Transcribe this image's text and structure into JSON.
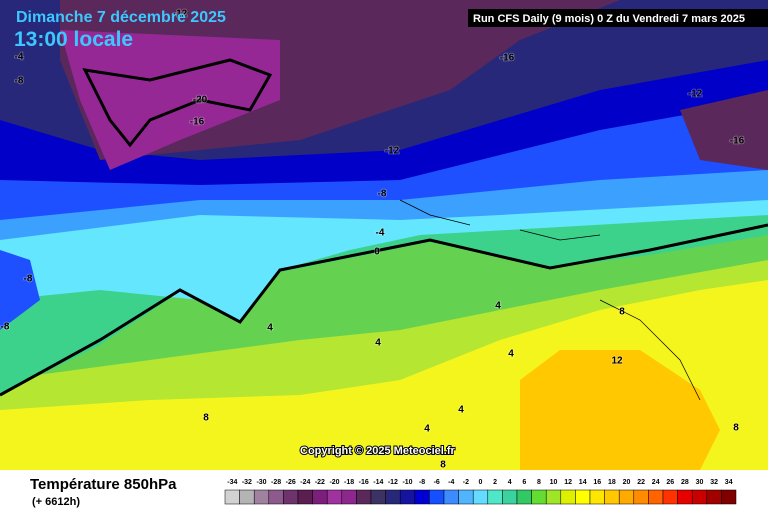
{
  "header": {
    "date": "Dimanche 7 décembre 2025",
    "time": "13:00 locale",
    "run": "Run CFS Daily (9 mois) 0 Z du Vendredi 7 mars 2025"
  },
  "copyright": "Copyright © 2025 Meteociel.fr",
  "footer": {
    "title": "Température 850hPa",
    "lead": "(+ 6612h)"
  },
  "contour_labels": [
    -12,
    -16,
    -20,
    -16,
    -12,
    -8,
    -4,
    0,
    -12,
    -16,
    -8,
    -8,
    4,
    4,
    4,
    4,
    8,
    12,
    8,
    4,
    4,
    8,
    8,
    -8,
    -4
  ],
  "legend": [
    {
      "value": -34,
      "color": "#d2d2d2"
    },
    {
      "value": -32,
      "color": "#b4b4b4"
    },
    {
      "value": -30,
      "color": "#a082a0"
    },
    {
      "value": -28,
      "color": "#8c5a8c"
    },
    {
      "value": -26,
      "color": "#6e326e"
    },
    {
      "value": -24,
      "color": "#5a1e50"
    },
    {
      "value": -22,
      "color": "#7d1e7d"
    },
    {
      "value": -20,
      "color": "#a032a0"
    },
    {
      "value": -18,
      "color": "#8c288c"
    },
    {
      "value": -16,
      "color": "#5a285a"
    },
    {
      "value": -14,
      "color": "#3c3264"
    },
    {
      "value": -12,
      "color": "#28287a"
    },
    {
      "value": -10,
      "color": "#1414a0"
    },
    {
      "value": -8,
      "color": "#0000d2"
    },
    {
      "value": -6,
      "color": "#1450ff"
    },
    {
      "value": -4,
      "color": "#3c8cff"
    },
    {
      "value": -2,
      "color": "#50b4ff"
    },
    {
      "value": 0,
      "color": "#64dcff"
    },
    {
      "value": 2,
      "color": "#50e6c8"
    },
    {
      "value": 4,
      "color": "#3cd2a0"
    },
    {
      "value": 6,
      "color": "#32c864"
    },
    {
      "value": 8,
      "color": "#64dc32"
    },
    {
      "value": 10,
      "color": "#a0e628"
    },
    {
      "value": 12,
      "color": "#dcf000"
    },
    {
      "value": 14,
      "color": "#ffff00"
    },
    {
      "value": 16,
      "color": "#ffe600"
    },
    {
      "value": 18,
      "color": "#ffc800"
    },
    {
      "value": 20,
      "color": "#ffaa00"
    },
    {
      "value": 22,
      "color": "#ff8c00"
    },
    {
      "value": 24,
      "color": "#ff6400"
    },
    {
      "value": 26,
      "color": "#ff3200"
    },
    {
      "value": 28,
      "color": "#e60000"
    },
    {
      "value": 30,
      "color": "#c80000"
    },
    {
      "value": 32,
      "color": "#a00000"
    },
    {
      "value": 34,
      "color": "#800000"
    }
  ]
}
